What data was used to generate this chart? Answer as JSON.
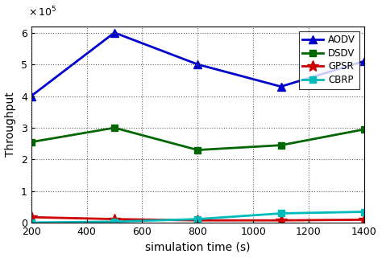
{
  "x": [
    200,
    500,
    800,
    1100,
    1400
  ],
  "AODV": [
    400000,
    600000,
    500000,
    430000,
    510000
  ],
  "DSDV": [
    255000,
    300000,
    230000,
    245000,
    295000
  ],
  "GPSR": [
    18000,
    12000,
    8000,
    8000,
    10000
  ],
  "CBRP": [
    1000,
    4000,
    12000,
    30000,
    35000
  ],
  "AODV_color": "#0000cc",
  "DSDV_color": "#006600",
  "GPSR_color": "#cc0000",
  "CBRP_color": "#00bbbb",
  "xlabel": "simulation time (s)",
  "ylabel": "Throughput",
  "ylim": [
    0,
    620000
  ],
  "xlim": [
    200,
    1400
  ],
  "yticks": [
    0,
    100000,
    200000,
    300000,
    400000,
    500000,
    600000
  ],
  "ytick_labels": [
    "0",
    "1",
    "2",
    "3",
    "4",
    "5",
    "6"
  ],
  "xticks": [
    200,
    400,
    600,
    800,
    1000,
    1200,
    1400
  ],
  "scale_text": "x 10",
  "scale_exp": "5"
}
